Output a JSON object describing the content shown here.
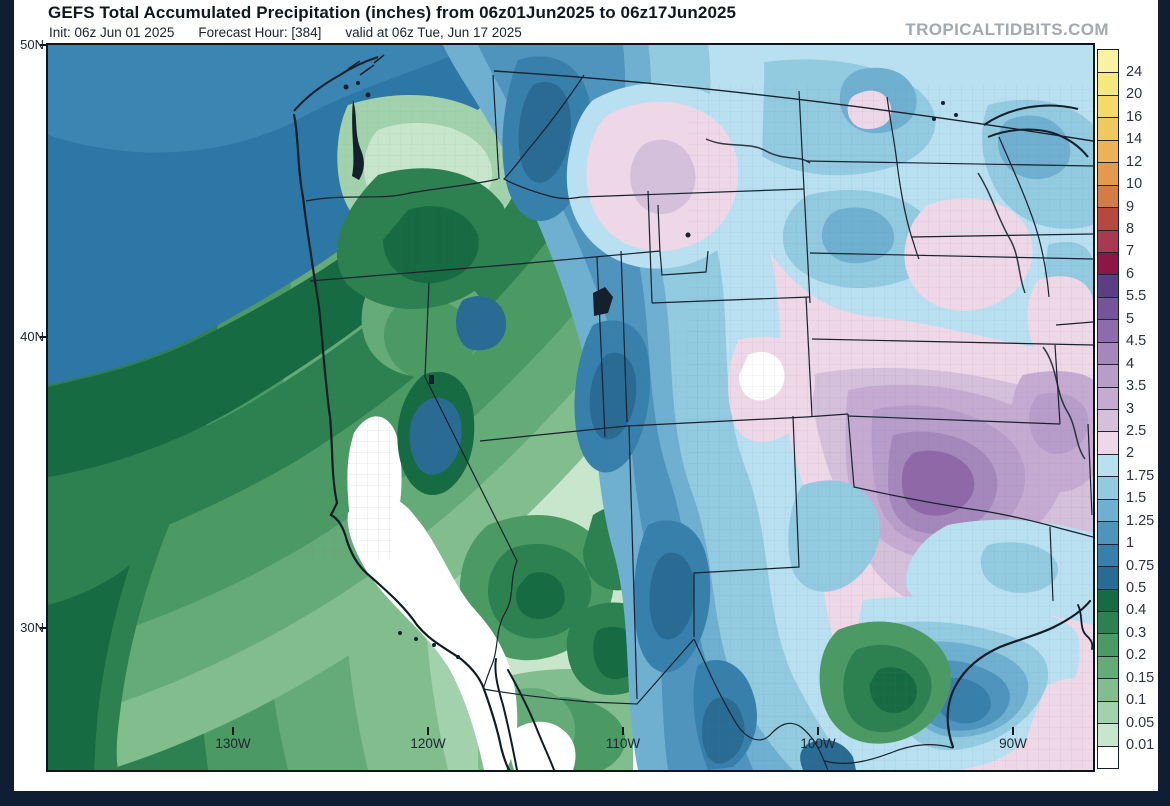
{
  "page": {
    "frame_color": "#101e33",
    "canvas_color": "#ffffff"
  },
  "header": {
    "title": "GEFS Total Accumulated Precipitation (inches) from 06z01Jun2025 to 06z17Jun2025",
    "init_label": "Init: 06z Jun 01 2025",
    "forecast_hour_label": "Forecast Hour: [384]",
    "valid_label": "valid at 06z Tue, Jun 17 2025",
    "watermark": "TROPICALTIDBITS.COM"
  },
  "chart_data": {
    "type": "heatmap",
    "title": "GEFS Total Accumulated Precipitation (inches) from 06z01Jun2025 to 06z17Jun2025",
    "units": "inches",
    "model": "GEFS",
    "field": "Total Accumulated Precipitation",
    "init": "06z Jun 01 2025",
    "forecast_hour": 384,
    "valid": "06z Tue, Jun 17 2025",
    "region": "Western and Central United States",
    "x_ticks": [
      "130W",
      "120W",
      "110W",
      "100W",
      "90W"
    ],
    "y_ticks": [
      "50N",
      "40N",
      "30N"
    ],
    "colorbar_levels_inches": [
      "24",
      "20",
      "16",
      "14",
      "12",
      "10",
      "9",
      "8",
      "7",
      "6",
      "5.5",
      "5",
      "4.5",
      "4",
      "3.5",
      "3",
      "2.5",
      "2",
      "1.75",
      "1.5",
      "1.25",
      "1",
      "0.75",
      "0.5",
      "0.4",
      "0.3",
      "0.2",
      "0.15",
      "0.1",
      "0.05",
      "0.01"
    ],
    "colorbar_colors_top_to_bottom": [
      "#f8f2a4",
      "#f5e87e",
      "#f3da69",
      "#f0c95e",
      "#ebb356",
      "#e29a4d",
      "#d47c45",
      "#b5493f",
      "#a83a50",
      "#8c1746",
      "#5b3f85",
      "#74549b",
      "#8d6cab",
      "#a487bb",
      "#b79dc9",
      "#c5abd2",
      "#d4c0da",
      "#eed7e6",
      "#b9e0f1",
      "#92cae0",
      "#6fb0d0",
      "#4e94bd",
      "#3780ab",
      "#2a6b94",
      "#176b42",
      "#2d8050",
      "#4b9a64",
      "#65ab77",
      "#81bd8d",
      "#a2d2ab",
      "#c8e6cb",
      "#ffffff"
    ],
    "readings": [
      {
        "area": "south-central Kansas / northern Oklahoma",
        "value_inches": "4 to 4.5 (local max)"
      },
      {
        "area": "central plains NE/KS/OK/MO/AR",
        "value_inches": "2.5 to 4"
      },
      {
        "area": "central Montana pocket",
        "value_inches": "2 to 2.5"
      },
      {
        "area": "Rockies corridor UT/CO/NM into west Texas",
        "value_inches": "0.75 to 1.5"
      },
      {
        "area": "Pacific Northwest offshore",
        "value_inches": "0.75 to 1.25"
      },
      {
        "area": "California central valley and SoCal coast",
        "value_inches": "under 0.01"
      },
      {
        "area": "Gulf of Mexico off Texas coast",
        "value_inches": "1 to 1.5"
      },
      {
        "area": "upper Midwest (Dakotas/Minnesota)",
        "value_inches": "1.75 to 2.5"
      }
    ]
  }
}
